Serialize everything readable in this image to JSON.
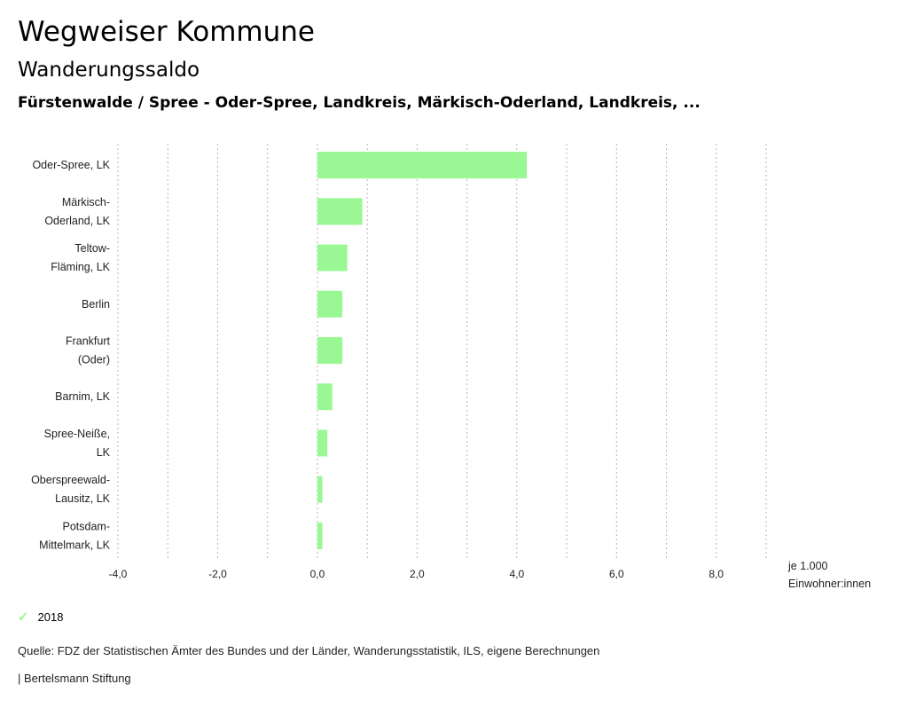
{
  "header": {
    "title": "Wegweiser Kommune",
    "subtitle": "Wanderungssaldo",
    "region": "Fürstenwalde / Spree - Oder-Spree, Landkreis, Märkisch-Oderland, Landkreis, ..."
  },
  "chart_data": {
    "type": "bar",
    "orientation": "horizontal",
    "title": "Wanderungssaldo",
    "categories": [
      [
        "Oder-Spree, LK"
      ],
      [
        "Märkisch-",
        "Oderland, LK"
      ],
      [
        "Teltow-",
        "Fläming, LK"
      ],
      [
        "Berlin"
      ],
      [
        "Frankfurt",
        "(Oder)"
      ],
      [
        "Barnim, LK"
      ],
      [
        "Spree-Neiße,",
        "LK"
      ],
      [
        "Oberspreewald-",
        "Lausitz, LK"
      ],
      [
        "Potsdam-",
        "Mittelmark, LK"
      ]
    ],
    "series": [
      {
        "name": "2018",
        "color": "#99f893",
        "values": [
          4.2,
          0.9,
          0.6,
          0.5,
          0.5,
          0.3,
          0.2,
          0.1,
          0.1
        ]
      }
    ],
    "xlim": [
      -4,
      9
    ],
    "xticks": [
      -4,
      -2,
      0,
      2,
      4,
      6,
      8
    ],
    "xtick_labels": [
      "-4,0",
      "-2,0",
      "0,0",
      "2,0",
      "4,0",
      "6,0",
      "8,0"
    ],
    "gridlines": [
      -4,
      -3,
      -2,
      -1,
      0,
      1,
      2,
      3,
      4,
      5,
      6,
      7,
      8,
      9
    ],
    "xlabel_lines": [
      "je 1.000",
      "Einwohner:innen"
    ],
    "grid": true,
    "legend_position": "bottom-left"
  },
  "legend": {
    "label": "2018",
    "icon": "check-icon"
  },
  "footer": {
    "source": "Quelle: FDZ der Statistischen Ämter des Bundes und der Länder, Wanderungsstatistik, ILS, eigene Berechnungen",
    "credit": "| Bertelsmann Stiftung"
  }
}
